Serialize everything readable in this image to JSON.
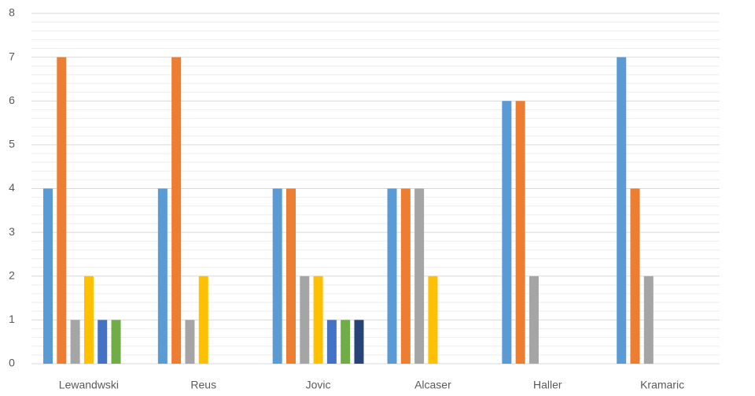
{
  "chart_data": {
    "type": "bar",
    "categories": [
      "Lewandwski",
      "Reus",
      "Jovic",
      "Alcaser",
      "Haller",
      "Kramaric"
    ],
    "series": [
      {
        "color": "#5B9BD5",
        "values": [
          4,
          4,
          4,
          4,
          6,
          7
        ]
      },
      {
        "color": "#ED7D31",
        "values": [
          7,
          7,
          4,
          4,
          6,
          4
        ]
      },
      {
        "color": "#A5A5A5",
        "values": [
          1,
          1,
          2,
          4,
          2,
          2
        ]
      },
      {
        "color": "#FFC000",
        "values": [
          2,
          2,
          2,
          2,
          0,
          0
        ]
      },
      {
        "color": "#4472C4",
        "values": [
          1,
          0,
          1,
          0,
          0,
          0
        ]
      },
      {
        "color": "#70AD47",
        "values": [
          1,
          0,
          1,
          0,
          0,
          0
        ]
      },
      {
        "color": "#264478",
        "values": [
          0,
          0,
          1,
          0,
          0,
          0
        ]
      }
    ],
    "ylim": [
      0,
      8
    ],
    "yticks": [
      0,
      1,
      2,
      3,
      4,
      5,
      6,
      7,
      8
    ],
    "grid": true,
    "minor_grid_divisions": 5
  }
}
